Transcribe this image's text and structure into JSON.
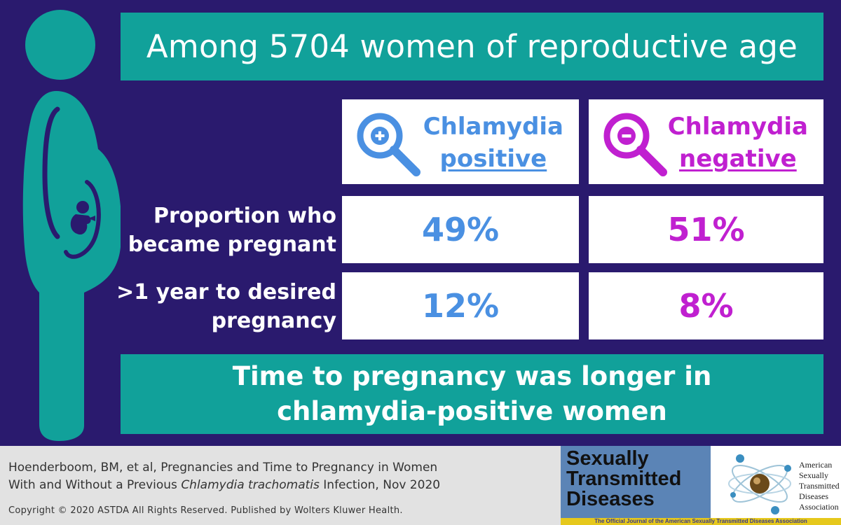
{
  "title": "Among 5704 women of reproductive age",
  "headers": {
    "positive": {
      "line1": "Chlamydia",
      "line2": "positive"
    },
    "negative": {
      "line1": "Chlamydia",
      "line2": "negative"
    }
  },
  "rows": [
    {
      "label_line1": "Proportion who",
      "label_line2": "became pregnant",
      "positive": "49%",
      "negative": "51%"
    },
    {
      "label_line1": ">1 year to desired",
      "label_line2": "pregnancy",
      "positive": "12%",
      "negative": "8%"
    }
  ],
  "conclusion": {
    "line1": "Time to pregnancy was longer in",
    "line2": "chlamydia-positive women"
  },
  "citation": {
    "line1": "Hoenderboom, BM, et al, Pregnancies and Time to Pregnancy in Women",
    "line2_pre": "With and Without a Previous ",
    "line2_italic": "Chlamydia trachomatis",
    "line2_post": " Infection, Nov 2020"
  },
  "copyright": "Copyright © 2020 ASTDA All Rights Reserved. Published by Wolters Kluwer Health.",
  "journal": {
    "line1": "Sexually",
    "line2": "Transmitted",
    "line3": "Diseases"
  },
  "association": {
    "line1": "American",
    "line2": "Sexually",
    "line3": "Transmitted",
    "line4": "Diseases",
    "line5": "Association"
  },
  "banner": "The Official Journal of the American Sexually Transmitted Diseases Association",
  "colors": {
    "background": "#2a1a6e",
    "teal": "#11a19a",
    "positive": "#4a90e2",
    "negative": "#c020d0"
  },
  "icons": {
    "figure": "pregnant-woman-icon",
    "positive": "magnifier-plus-icon",
    "negative": "magnifier-minus-icon"
  }
}
